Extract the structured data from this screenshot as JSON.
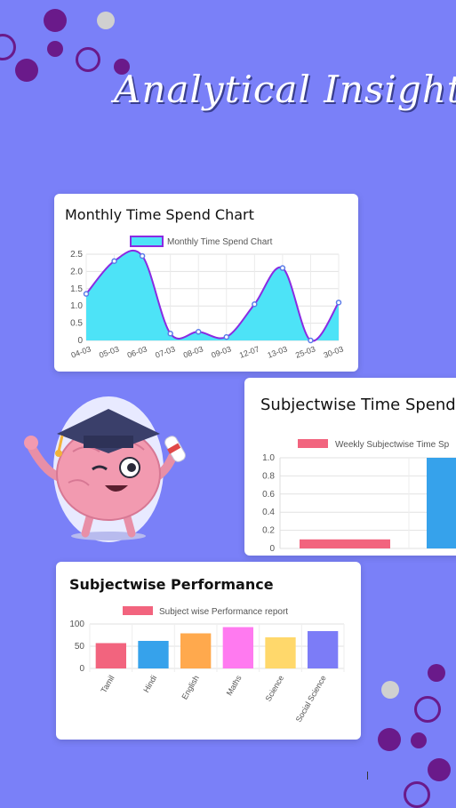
{
  "header": {
    "title": "Analytical Insight"
  },
  "colors": {
    "background": "#7A80F8",
    "deco_purple": "#6A1A8A",
    "deco_grey": "#D0D0D0"
  },
  "cards": {
    "monthly": {
      "title": "Monthly Time Spend Chart"
    },
    "subjectwise_time": {
      "title": "Subjectwise Time Spend"
    },
    "performance": {
      "title": "Subjectwise Performance"
    }
  },
  "chart_data": [
    {
      "type": "area",
      "title": "Monthly Time Spend Chart",
      "legend": "Monthly Time Spend Chart",
      "categories": [
        "04-03",
        "05-03",
        "06-03",
        "07-03",
        "08-03",
        "09-03",
        "12-07",
        "13-03",
        "25-03",
        "30-03"
      ],
      "values": [
        1.35,
        2.3,
        2.45,
        0.2,
        0.25,
        0.1,
        1.05,
        2.1,
        0.0,
        1.1
      ],
      "ylim": [
        0,
        2.5
      ],
      "yticks": [
        "0",
        "0.5",
        "1.0",
        "1.5",
        "2.0",
        "2.5"
      ],
      "colors": {
        "fill": "#4DE3F7",
        "line": "#8A2BE2"
      }
    },
    {
      "type": "bar",
      "title": "Subjectwise Time Spend",
      "legend": "Weekly Subjectwise Time Sp",
      "categories": [
        "",
        ""
      ],
      "values": [
        0.1,
        1.0
      ],
      "ylim": [
        0,
        1.0
      ],
      "yticks": [
        "0",
        "0.2",
        "0.4",
        "0.6",
        "0.8",
        "1.0"
      ],
      "colors": [
        "#F2647E",
        "#36A2EB"
      ]
    },
    {
      "type": "bar",
      "title": "Subjectwise Performance",
      "legend": "Subject wise Performance report",
      "categories": [
        "Tamil",
        "Hindi",
        "English",
        "Maths",
        "Science",
        "Social Science"
      ],
      "values": [
        57,
        62,
        79,
        93,
        70,
        84
      ],
      "ylim": [
        0,
        100
      ],
      "yticks": [
        "0",
        "50",
        "100"
      ],
      "colors": [
        "#F2647E",
        "#36A2EB",
        "#FFA94D",
        "#FF7AF0",
        "#FFD86B",
        "#7C7CF7"
      ]
    }
  ]
}
